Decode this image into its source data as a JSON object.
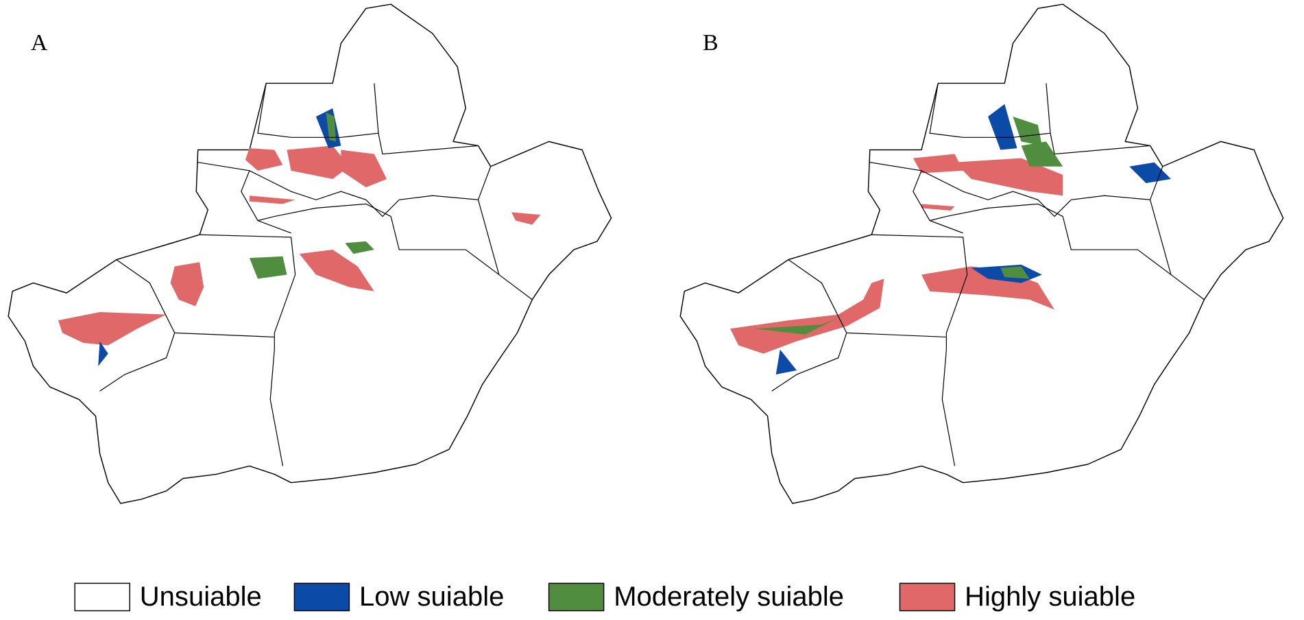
{
  "panels": [
    {
      "label": "A"
    },
    {
      "label": "B"
    }
  ],
  "legend": [
    {
      "label": "Unsuiable",
      "color": "#ffffff"
    },
    {
      "label": "Low suiable",
      "color": "#0b4aa6"
    },
    {
      "label": "Moderately suiable",
      "color": "#518d3e"
    },
    {
      "label": "Highly suiable",
      "color": "#e06868"
    }
  ]
}
